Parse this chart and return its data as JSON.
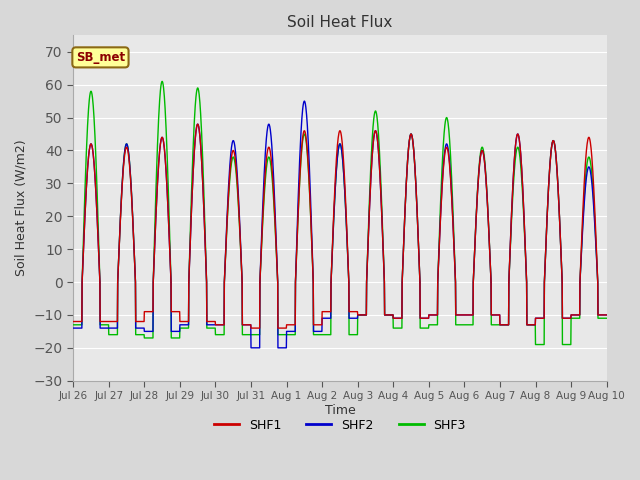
{
  "title": "Soil Heat Flux",
  "ylabel": "Soil Heat Flux (W/m2)",
  "xlabel": "Time",
  "ylim": [
    -30,
    75
  ],
  "yticks": [
    -30,
    -20,
    -10,
    0,
    10,
    20,
    30,
    40,
    50,
    60,
    70
  ],
  "legend_label": "SB_met",
  "series_labels": [
    "SHF1",
    "SHF2",
    "SHF3"
  ],
  "series_colors": [
    "#cc0000",
    "#0000cc",
    "#00bb00"
  ],
  "bg_color": "#e8e8e8",
  "grid_color": "#ffffff",
  "n_days": 15,
  "pts_per_day": 144,
  "figsize": [
    6.4,
    4.8
  ],
  "dpi": 100,
  "peaks_shf1": [
    42,
    41,
    44,
    48,
    40,
    41,
    46,
    46,
    46,
    45,
    41,
    40,
    45,
    43,
    44
  ],
  "peaks_shf2": [
    42,
    42,
    44,
    48,
    43,
    48,
    55,
    42,
    46,
    45,
    42,
    40,
    45,
    43,
    35
  ],
  "peaks_shf3": [
    58,
    42,
    61,
    59,
    38,
    38,
    45,
    42,
    52,
    45,
    50,
    41,
    41,
    43,
    38
  ],
  "troughs_shf1": [
    -12,
    -12,
    -9,
    -12,
    -13,
    -14,
    -13,
    -9,
    -10,
    -11,
    -10,
    -10,
    -13,
    -11,
    -10
  ],
  "troughs_shf2": [
    -14,
    -14,
    -15,
    -13,
    -13,
    -20,
    -15,
    -11,
    -10,
    -11,
    -10,
    -10,
    -13,
    -11,
    -10
  ],
  "troughs_shf3": [
    -13,
    -16,
    -17,
    -14,
    -16,
    -16,
    -16,
    -16,
    -10,
    -14,
    -13,
    -13,
    -13,
    -19,
    -11
  ]
}
